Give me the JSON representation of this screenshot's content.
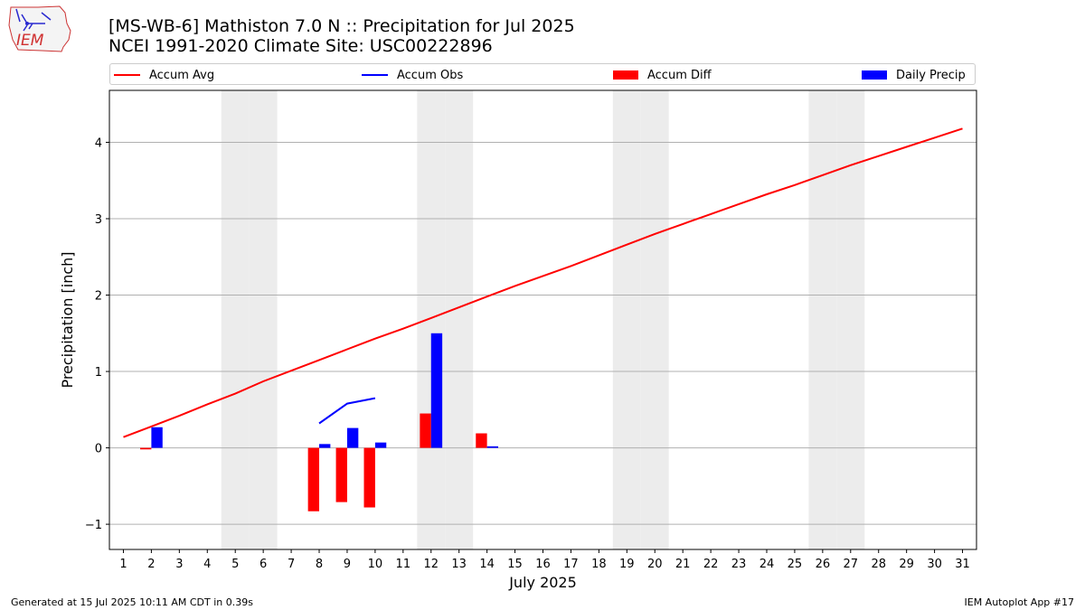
{
  "header": {
    "title_line1": "[MS-WB-6] Mathiston 7.0 N :: Precipitation for Jul 2025",
    "title_line2": "NCEI 1991-2020 Climate Site: USC00222896"
  },
  "logo": {
    "text": "IEM"
  },
  "footer": {
    "generated": "Generated at 15 Jul 2025 10:11 AM CDT in 0.39s",
    "app": "IEM Autoplot App #17"
  },
  "colors": {
    "accum_avg": "#ff0000",
    "accum_obs": "#0000ff",
    "accum_diff": "#ff0000",
    "daily_precip": "#0000ff",
    "weekend_shade": "#ececec",
    "grid": "#b0b0b0"
  },
  "chart_data": {
    "type": "bar",
    "xlabel": "July 2025",
    "ylabel": "Precipitation [inch]",
    "xlim": [
      0.5,
      31.5
    ],
    "ylim": [
      -1.33,
      4.68
    ],
    "yticks": [
      -1,
      0,
      1,
      2,
      3,
      4
    ],
    "ytick_labels": [
      "−1",
      "0",
      "1",
      "2",
      "3",
      "4"
    ],
    "grid": "horizontal",
    "legend_position": "top",
    "days": [
      1,
      2,
      3,
      4,
      5,
      6,
      7,
      8,
      9,
      10,
      11,
      12,
      13,
      14,
      15,
      16,
      17,
      18,
      19,
      20,
      21,
      22,
      23,
      24,
      25,
      26,
      27,
      28,
      29,
      30,
      31
    ],
    "weekend_days": [
      5,
      6,
      12,
      13,
      19,
      20,
      26,
      27
    ],
    "series": [
      {
        "name": "Accum Avg",
        "kind": "line",
        "color": "#ff0000",
        "x": [
          1,
          2,
          3,
          4,
          5,
          6,
          7,
          8,
          9,
          10,
          11,
          12,
          13,
          14,
          15,
          16,
          17,
          18,
          19,
          20,
          21,
          22,
          23,
          24,
          25,
          26,
          27,
          28,
          29,
          30,
          31
        ],
        "values": [
          0.14,
          0.28,
          0.42,
          0.57,
          0.71,
          0.87,
          1.01,
          1.15,
          1.29,
          1.43,
          1.56,
          1.7,
          1.84,
          1.98,
          2.12,
          2.25,
          2.38,
          2.52,
          2.66,
          2.8,
          2.93,
          3.06,
          3.19,
          3.32,
          3.44,
          3.57,
          3.7,
          3.82,
          3.94,
          4.06,
          4.18
        ]
      },
      {
        "name": "Accum Obs",
        "kind": "line",
        "color": "#0000ff",
        "x": [
          8,
          9,
          10
        ],
        "values": [
          0.32,
          0.58,
          0.65
        ]
      },
      {
        "name": "Accum Diff",
        "kind": "bar",
        "color": "#ff0000",
        "x": [
          2,
          8,
          9,
          10,
          12,
          14
        ],
        "values": [
          -0.02,
          -0.83,
          -0.71,
          -0.78,
          0.45,
          0.19
        ]
      },
      {
        "name": "Daily Precip",
        "kind": "bar",
        "color": "#0000ff",
        "x": [
          2,
          8,
          9,
          10,
          12,
          14
        ],
        "values": [
          0.27,
          0.05,
          0.26,
          0.07,
          1.5,
          0.02
        ]
      }
    ]
  }
}
